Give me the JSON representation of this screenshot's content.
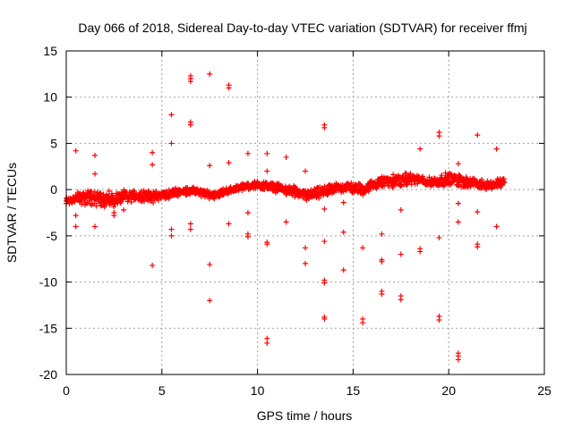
{
  "chart_data": {
    "type": "scatter",
    "title": "Day 066 of 2018, Sidereal Day-to-day VTEC variation (SDTVAR) for receiver ffmj",
    "xlabel": "GPS time / hours",
    "ylabel": "SDTVAR / TECUs",
    "xlim": [
      0,
      25
    ],
    "ylim": [
      -20,
      15
    ],
    "xticks": [
      "0",
      "5",
      "10",
      "15",
      "20",
      "25"
    ],
    "yticks": [
      "15",
      "10",
      "5",
      "0",
      "-5",
      "-10",
      "-15",
      "-20"
    ],
    "grid": true,
    "color": "#ff0000",
    "band": {
      "description": "dense band of points",
      "x": [
        0.0,
        0.5,
        1.0,
        1.5,
        2.0,
        2.5,
        3.0,
        3.5,
        4.0,
        4.5,
        5.0,
        5.5,
        6.0,
        6.5,
        7.0,
        7.5,
        8.0,
        8.5,
        9.0,
        9.5,
        10.0,
        10.5,
        11.0,
        11.5,
        12.0,
        12.5,
        13.0,
        13.5,
        14.0,
        14.5,
        15.0,
        15.5,
        16.0,
        16.5,
        17.0,
        17.5,
        18.0,
        18.5,
        19.0,
        19.5,
        20.0,
        20.5,
        21.0,
        21.5,
        22.0,
        22.5,
        22.9
      ],
      "center": [
        -1.2,
        -1.0,
        -0.8,
        -0.9,
        -1.0,
        -1.1,
        -0.8,
        -0.7,
        -0.6,
        -0.8,
        -0.6,
        -0.4,
        -0.2,
        -0.1,
        -0.3,
        -0.6,
        -0.4,
        -0.1,
        0.2,
        0.4,
        0.5,
        0.4,
        0.2,
        0.0,
        -0.3,
        -0.6,
        -0.5,
        -0.2,
        0.1,
        0.3,
        0.2,
        0.0,
        0.5,
        0.8,
        0.9,
        1.0,
        1.2,
        1.0,
        0.8,
        0.9,
        1.2,
        1.0,
        0.8,
        0.6,
        0.5,
        0.6,
        0.9
      ],
      "halfwidth": [
        0.5,
        0.8,
        1.0,
        1.1,
        1.0,
        0.9,
        0.8,
        0.8,
        0.7,
        0.7,
        0.6,
        0.6,
        0.5,
        0.5,
        0.5,
        0.5,
        0.5,
        0.4,
        0.4,
        0.4,
        0.5,
        0.5,
        0.6,
        0.6,
        0.7,
        0.7,
        0.7,
        0.7,
        0.6,
        0.6,
        0.7,
        0.7,
        0.6,
        0.7,
        0.8,
        0.8,
        0.7,
        0.6,
        0.6,
        0.7,
        0.8,
        0.8,
        0.7,
        0.7,
        0.6,
        0.6,
        0.6
      ],
      "count": 1500
    },
    "outliers": [
      [
        0.0,
        -1.5
      ],
      [
        0.5,
        4.2
      ],
      [
        0.5,
        -2.8
      ],
      [
        0.5,
        -4.0
      ],
      [
        1.5,
        3.7
      ],
      [
        1.5,
        1.7
      ],
      [
        1.5,
        -4.0
      ],
      [
        2.5,
        -2.8
      ],
      [
        2.5,
        -2.5
      ],
      [
        3.0,
        -2.2
      ],
      [
        4.5,
        4.0
      ],
      [
        4.5,
        2.7
      ],
      [
        4.5,
        -8.2
      ],
      [
        5.5,
        8.1
      ],
      [
        5.5,
        5.0
      ],
      [
        5.5,
        -4.3
      ],
      [
        5.5,
        -5.0
      ],
      [
        6.5,
        12.3
      ],
      [
        6.5,
        12.0
      ],
      [
        6.5,
        11.7
      ],
      [
        6.5,
        7.3
      ],
      [
        6.5,
        7.0
      ],
      [
        6.5,
        -3.7
      ],
      [
        6.5,
        -4.3
      ],
      [
        7.5,
        12.5
      ],
      [
        7.5,
        2.6
      ],
      [
        7.5,
        -8.1
      ],
      [
        7.5,
        -12.0
      ],
      [
        8.5,
        11.3
      ],
      [
        8.5,
        11.0
      ],
      [
        8.5,
        2.9
      ],
      [
        8.5,
        -3.7
      ],
      [
        9.5,
        3.9
      ],
      [
        9.5,
        -2.5
      ],
      [
        9.5,
        -4.8
      ],
      [
        9.5,
        -5.1
      ],
      [
        10.5,
        3.9
      ],
      [
        10.5,
        2.0
      ],
      [
        10.5,
        -5.7
      ],
      [
        10.5,
        -5.9
      ],
      [
        10.5,
        -16.1
      ],
      [
        10.5,
        -16.6
      ],
      [
        11.5,
        3.5
      ],
      [
        11.5,
        -3.5
      ],
      [
        12.5,
        2.0
      ],
      [
        12.5,
        -6.3
      ],
      [
        12.5,
        -8.0
      ],
      [
        13.5,
        7.0
      ],
      [
        13.5,
        6.7
      ],
      [
        13.5,
        -2.1
      ],
      [
        13.5,
        -5.6
      ],
      [
        13.5,
        -9.8
      ],
      [
        13.5,
        -10.1
      ],
      [
        13.5,
        -13.8
      ],
      [
        13.5,
        -14.0
      ],
      [
        14.5,
        -1.4
      ],
      [
        14.5,
        -4.6
      ],
      [
        14.5,
        -8.7
      ],
      [
        15.5,
        -6.3
      ],
      [
        15.5,
        -14.0
      ],
      [
        15.5,
        -14.4
      ],
      [
        16.5,
        -4.8
      ],
      [
        16.5,
        -7.6
      ],
      [
        16.5,
        -7.8
      ],
      [
        16.5,
        -11.0
      ],
      [
        16.5,
        -11.3
      ],
      [
        17.5,
        -2.2
      ],
      [
        17.5,
        -7.0
      ],
      [
        17.5,
        -11.5
      ],
      [
        17.5,
        -11.9
      ],
      [
        18.5,
        4.4
      ],
      [
        18.5,
        -6.4
      ],
      [
        18.5,
        -6.7
      ],
      [
        19.5,
        6.2
      ],
      [
        19.5,
        5.8
      ],
      [
        19.5,
        -5.2
      ],
      [
        19.5,
        -13.7
      ],
      [
        19.5,
        -14.1
      ],
      [
        20.5,
        2.8
      ],
      [
        20.5,
        -1.5
      ],
      [
        20.5,
        -3.5
      ],
      [
        20.5,
        -17.7
      ],
      [
        20.5,
        -18.0
      ],
      [
        20.5,
        -18.4
      ],
      [
        21.5,
        5.9
      ],
      [
        21.5,
        -2.4
      ],
      [
        21.5,
        -5.9
      ],
      [
        21.5,
        -6.2
      ],
      [
        22.5,
        4.4
      ],
      [
        22.5,
        -4.0
      ]
    ]
  }
}
